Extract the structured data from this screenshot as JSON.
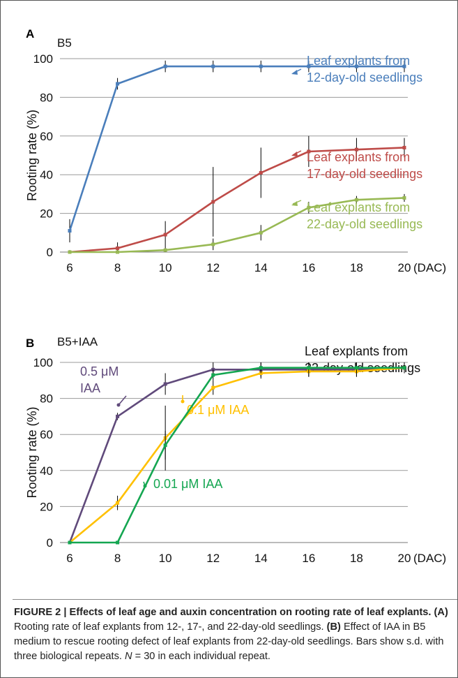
{
  "chart_data": [
    {
      "panel": "A",
      "type": "line",
      "title": "B5",
      "ylabel": "Rooting rate (%)",
      "xunit": "(DAC)",
      "x": [
        6,
        8,
        10,
        12,
        14,
        16,
        18,
        20
      ],
      "xticks": [
        "6",
        "8",
        "10",
        "12",
        "14",
        "16",
        "18",
        "20"
      ],
      "ylim": [
        0,
        100
      ],
      "yticks": [
        "0",
        "20",
        "40",
        "60",
        "80",
        "100"
      ],
      "grid": true,
      "series": [
        {
          "name": "Leaf explants from 12-day-old seedlings",
          "label_lines": [
            "Leaf explants from",
            "12-day-old seedlings"
          ],
          "color": "#4a7ebb",
          "values": [
            11,
            87,
            96,
            96,
            96,
            96,
            96,
            96
          ],
          "sd": [
            6,
            3,
            3,
            3,
            3,
            3,
            3,
            3
          ]
        },
        {
          "name": "Leaf explants from 17-day-old seedlings",
          "label_lines": [
            "Leaf explants from",
            "17-day-old seedlings"
          ],
          "color": "#be4b48",
          "values": [
            0,
            2,
            9,
            26,
            41,
            52,
            53,
            54
          ],
          "sd": [
            1,
            3,
            7,
            18,
            13,
            8,
            6,
            5
          ]
        },
        {
          "name": "Leaf explants from 22-day-old seedlings",
          "label_lines": [
            "Leaf explants from",
            "22-day-old seedlings"
          ],
          "color": "#98b954",
          "values": [
            0,
            0,
            1,
            4,
            10,
            23,
            27,
            28
          ],
          "sd": [
            0,
            0,
            1,
            3,
            4,
            3,
            2,
            2
          ]
        }
      ]
    },
    {
      "panel": "B",
      "type": "line",
      "title": "B5+IAA",
      "subtitle_lines": [
        "Leaf explants from",
        "22-day-old seedlings"
      ],
      "ylabel": "Rooting rate (%)",
      "xunit": "(DAC)",
      "x": [
        6,
        8,
        10,
        12,
        14,
        16,
        18,
        20
      ],
      "xticks": [
        "6",
        "8",
        "10",
        "12",
        "14",
        "16",
        "18",
        "20"
      ],
      "ylim": [
        0,
        100
      ],
      "yticks": [
        "0",
        "20",
        "40",
        "60",
        "80",
        "100"
      ],
      "grid": true,
      "series": [
        {
          "name": "0.5 μM IAA",
          "label_lines": [
            "0.5 μM",
            "IAA"
          ],
          "color": "#604a7b",
          "values": [
            0,
            70,
            88,
            96,
            96,
            96,
            96,
            97
          ],
          "sd": [
            0,
            2,
            6,
            4,
            4,
            4,
            4,
            3
          ]
        },
        {
          "name": "0.1 μM IAA",
          "label_lines": [
            "0.1 μM IAA"
          ],
          "color": "#ffc000",
          "values": [
            0,
            22,
            58,
            86,
            94,
            95,
            95,
            97
          ],
          "sd": [
            0,
            4,
            18,
            4,
            3,
            3,
            3,
            3
          ]
        },
        {
          "name": "0.01 μM IAA",
          "label_lines": [
            "0.01 μM IAA"
          ],
          "color": "#14a651",
          "values": [
            0,
            0,
            54,
            93,
            97,
            97,
            97,
            97
          ],
          "sd": [
            0,
            0,
            8,
            3,
            3,
            3,
            3,
            3
          ]
        }
      ]
    }
  ],
  "caption": {
    "bold_lead": "FIGURE 2 | Effects of leaf age and auxin concentration on rooting rate of leaf explants.",
    "a_tag": "(A)",
    "a_text": "Rooting rate of leaf explants from 12-, 17-, and 22-day-old seedlings.",
    "b_tag": "(B)",
    "b_text": "Effect of IAA in B5 medium to rescue rooting defect of leaf explants from 22-day-old seedlings. Bars show s.d. with three biological repeats.",
    "n_symbol": "N",
    "n_text": " = 30 in each individual repeat."
  }
}
